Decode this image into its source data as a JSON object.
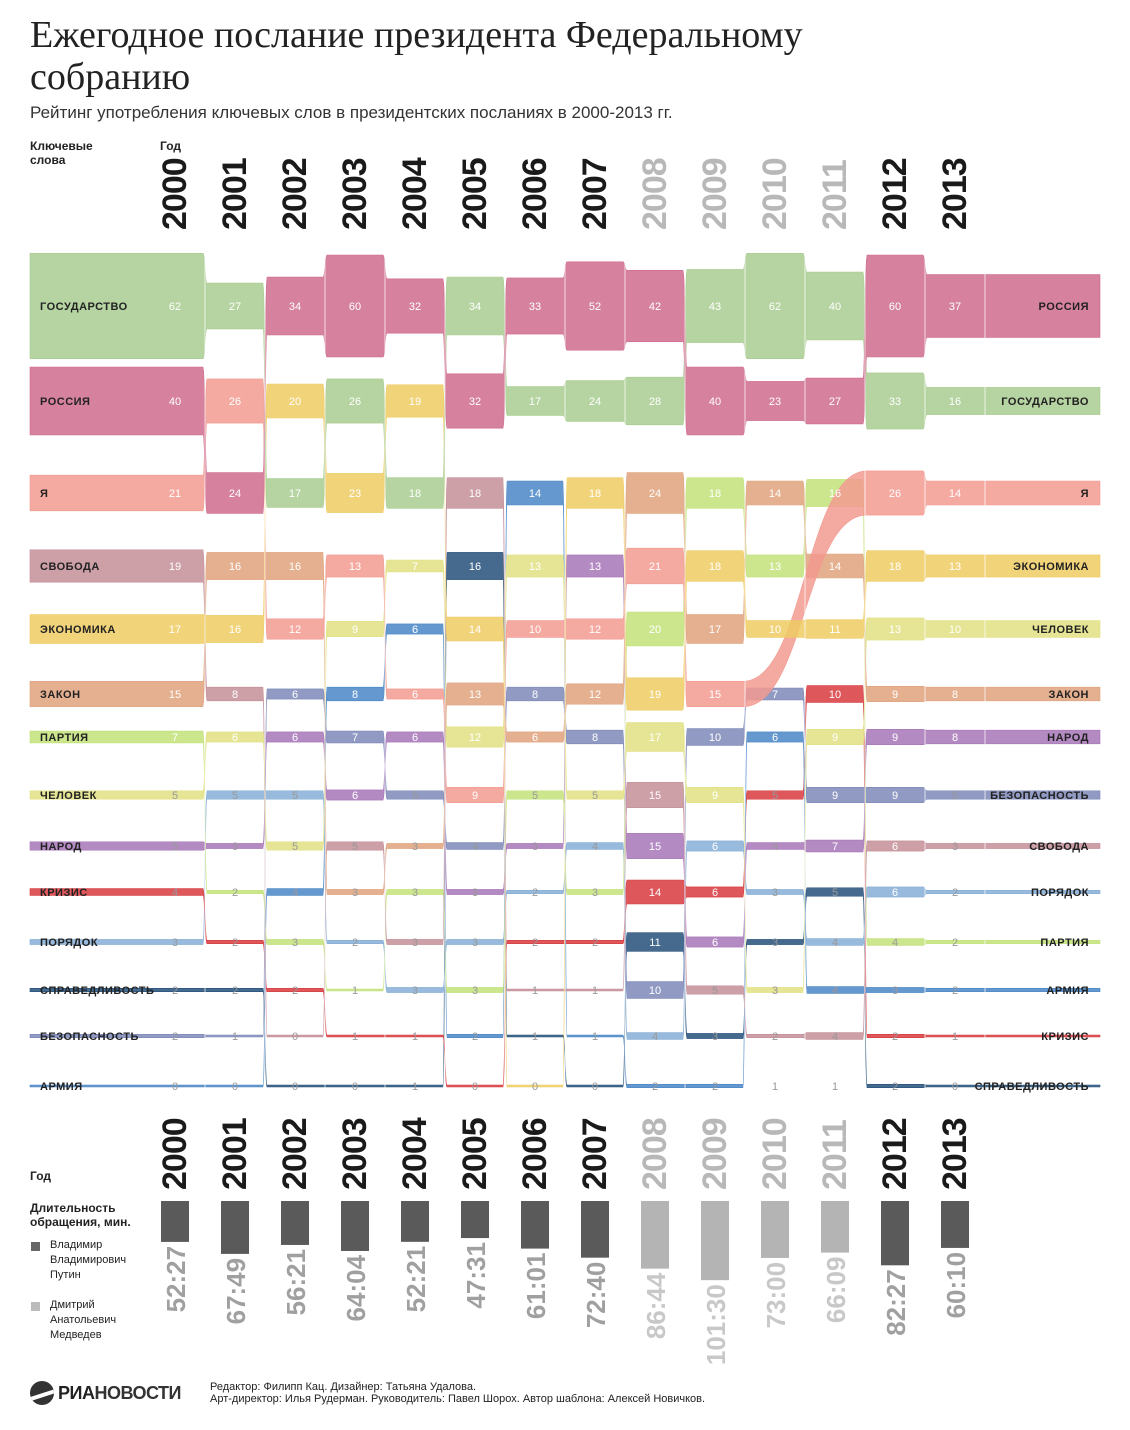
{
  "title": "Ежегодное послание президента Федеральному собранию",
  "subtitle": "Рейтинг употребления ключевых слов в президентских посланиях в 2000-2013 гг.",
  "headers": {
    "keywords": "Ключевые слова",
    "year": "Год",
    "year_bottom": "Год",
    "duration": "Длительность обращения, мин."
  },
  "legend": [
    {
      "label": "Владимир Владимирович Путин",
      "color": "#666666"
    },
    {
      "label": "Дмитрий Анатольевич Медведев",
      "color": "#bbbbbb"
    }
  ],
  "footer": {
    "line1": "Редактор: Филипп Кац. Дизайнер: Татьяна Удалова.",
    "line2": "Арт-директор: Илья Рудерман. Руководитель: Павел Шорох. Автор шаблона: Алексей Новичков.",
    "logo_a": "РИА",
    "logo_b": "НОВОСТИ"
  },
  "chart_data": {
    "type": "table",
    "years": [
      "2000",
      "2001",
      "2002",
      "2003",
      "2004",
      "2005",
      "2006",
      "2007",
      "2008",
      "2009",
      "2010",
      "2011",
      "2012",
      "2013"
    ],
    "president": [
      "Putin",
      "Putin",
      "Putin",
      "Putin",
      "Putin",
      "Putin",
      "Putin",
      "Putin",
      "Medvedev",
      "Medvedev",
      "Medvedev",
      "Medvedev",
      "Putin",
      "Putin"
    ],
    "durations": [
      "52:27",
      "67:49",
      "56:21",
      "64:04",
      "52:21",
      "47:31",
      "61:01",
      "72:40",
      "86:44",
      "101:30",
      "73:00",
      "66:09",
      "82:27",
      "60:10"
    ],
    "left_labels": [
      "ГОСУДАРСТВО",
      "РОССИЯ",
      "Я",
      "СВОБОДА",
      "ЭКОНОМИКА",
      "ЗАКОН",
      "ПАРТИЯ",
      "ЧЕЛОВЕК",
      "НАРОД",
      "КРИЗИС",
      "ПОРЯДОК",
      "СПРАВЕДЛИВОСТЬ",
      "БЕЗОПАСНОСТЬ",
      "АРМИЯ"
    ],
    "right_labels": [
      "РОССИЯ",
      "ГОСУДАРСТВО",
      "Я",
      "ЭКОНОМИКА",
      "ЧЕЛОВЕК",
      "ЗАКОН",
      "НАРОД",
      "БЕЗОПАСНОСТЬ",
      "СВОБОДА",
      "ПОРЯДОК",
      "ПАРТИЯ",
      "АРМИЯ",
      "КРИЗИС",
      "СПРАВЕДЛИВОСТЬ"
    ],
    "keyword_colors": {
      "ГОСУДАРСТВО": "#a8cc90",
      "РОССИЯ": "#cf6b8c",
      "Я": "#f29a90",
      "СВОБОДА": "#c48e98",
      "ЭКОНОМИКА": "#eecb63",
      "ЗАКОН": "#dfa27c",
      "ПАРТИЯ": "#c3e27a",
      "ЧЕЛОВЕК": "#e1e183",
      "НАРОД": "#a775b8",
      "КРИЗИС": "#d73a3e",
      "ПОРЯДОК": "#86aed6",
      "СПРАВЕДЛИВОСТЬ": "#24507a",
      "БЕЗОПАСНОСТЬ": "#7c88b8",
      "АРМИЯ": "#4a86c6"
    },
    "ranking": [
      {
        "year": "2000",
        "words": [
          "ГОСУДАРСТВО",
          "РОССИЯ",
          "Я",
          "СВОБОДА",
          "ЭКОНОМИКА",
          "ЗАКОН",
          "ПАРТИЯ",
          "ЧЕЛОВЕК",
          "НАРОД",
          "КРИЗИС",
          "ПОРЯДОК",
          "СПРАВЕДЛИВОСТЬ",
          "БЕЗОПАСНОСТЬ",
          "АРМИЯ"
        ],
        "counts": [
          62,
          40,
          21,
          19,
          17,
          15,
          7,
          5,
          5,
          4,
          3,
          2,
          2,
          0
        ]
      },
      {
        "year": "2001",
        "words": [
          "ГОСУДАРСТВО",
          "Я",
          "РОССИЯ",
          "ЗАКОН",
          "ЭКОНОМИКА",
          "СВОБОДА",
          "ЧЕЛОВЕК",
          "ПОРЯДОК",
          "НАРОД",
          "ПАРТИЯ",
          "КРИЗИС",
          "СПРАВЕДЛИВОСТЬ",
          "БЕЗОПАСНОСТЬ",
          "АРМИЯ"
        ],
        "counts": [
          27,
          26,
          24,
          16,
          16,
          8,
          6,
          5,
          3,
          2,
          2,
          2,
          1,
          0
        ]
      },
      {
        "year": "2002",
        "words": [
          "РОССИЯ",
          "ЭКОНОМИКА",
          "ГОСУДАРСТВО",
          "ЗАКОН",
          "Я",
          "БЕЗОПАСНОСТЬ",
          "НАРОД",
          "ПОРЯДОК",
          "ЧЕЛОВЕК",
          "АРМИЯ",
          "ПАРТИЯ",
          "КРИЗИС",
          "СВОБОДА",
          "СПРАВЕДЛИВОСТЬ"
        ],
        "counts": [
          34,
          20,
          17,
          16,
          12,
          6,
          6,
          5,
          5,
          4,
          3,
          2,
          0,
          0
        ]
      },
      {
        "year": "2003",
        "words": [
          "РОССИЯ",
          "ГОСУДАРСТВО",
          "ЭКОНОМИКА",
          "Я",
          "ЧЕЛОВЕК",
          "АРМИЯ",
          "БЕЗОПАСНОСТЬ",
          "НАРОД",
          "СВОБОДА",
          "ЗАКОН",
          "ПОРЯДОК",
          "ПАРТИЯ",
          "КРИЗИС",
          "СПРАВЕДЛИВОСТЬ"
        ],
        "counts": [
          60,
          26,
          23,
          13,
          9,
          8,
          7,
          6,
          5,
          3,
          2,
          1,
          1,
          0
        ]
      },
      {
        "year": "2004",
        "words": [
          "РОССИЯ",
          "ЭКОНОМИКА",
          "ГОСУДАРСТВО",
          "ЧЕЛОВЕК",
          "АРМИЯ",
          "Я",
          "НАРОД",
          "БЕЗОПАСНОСТЬ",
          "ЗАКОН",
          "ПАРТИЯ",
          "СВОБОДА",
          "ПОРЯДОК",
          "КРИЗИС",
          "СПРАВЕДЛИВОСТЬ"
        ],
        "counts": [
          32,
          19,
          18,
          7,
          6,
          6,
          6,
          5,
          3,
          3,
          3,
          3,
          1,
          1
        ]
      },
      {
        "year": "2005",
        "words": [
          "ГОСУДАРСТВО",
          "РОССИЯ",
          "СВОБОДА",
          "СПРАВЕДЛИВОСТЬ",
          "ЭКОНОМИКА",
          "ЗАКОН",
          "ЧЕЛОВЕК",
          "Я",
          "БЕЗОПАСНОСТЬ",
          "НАРОД",
          "ПОРЯДОК",
          "ПАРТИЯ",
          "АРМИЯ",
          "КРИЗИС"
        ],
        "counts": [
          34,
          32,
          18,
          16,
          14,
          13,
          12,
          9,
          4,
          3,
          3,
          3,
          2,
          0
        ]
      },
      {
        "year": "2006",
        "words": [
          "РОССИЯ",
          "ГОСУДАРСТВО",
          "АРМИЯ",
          "ЧЕЛОВЕК",
          "Я",
          "БЕЗОПАСНОСТЬ",
          "ЗАКОН",
          "ПАРТИЯ",
          "НАРОД",
          "ПОРЯДОК",
          "КРИЗИС",
          "СВОБОДА",
          "СПРАВЕДЛИВОСТЬ",
          "ЭКОНОМИКА"
        ],
        "counts": [
          33,
          17,
          14,
          13,
          10,
          8,
          6,
          5,
          3,
          2,
          2,
          1,
          1,
          0
        ]
      },
      {
        "year": "2007",
        "words": [
          "РОССИЯ",
          "ГОСУДАРСТВО",
          "ЭКОНОМИКА",
          "НАРОД",
          "Я",
          "ЗАКОН",
          "БЕЗОПАСНОСТЬ",
          "ЧЕЛОВЕК",
          "ПОРЯДОК",
          "ПАРТИЯ",
          "КРИЗИС",
          "СВОБОДА",
          "АРМИЯ",
          "СПРАВЕДЛИВОСТЬ"
        ],
        "counts": [
          52,
          24,
          18,
          13,
          12,
          12,
          8,
          5,
          4,
          3,
          2,
          1,
          1,
          0
        ]
      },
      {
        "year": "2008",
        "words": [
          "РОССИЯ",
          "ГОСУДАРСТВО",
          "ЗАКОН",
          "Я",
          "ПАРТИЯ",
          "ЭКОНОМИКА",
          "ЧЕЛОВЕК",
          "СВОБОДА",
          "НАРОД",
          "КРИЗИС",
          "СПРАВЕДЛИВОСТЬ",
          "БЕЗОПАСНОСТЬ",
          "ПОРЯДОК",
          "АРМИЯ"
        ],
        "counts": [
          42,
          28,
          24,
          21,
          20,
          19,
          17,
          15,
          15,
          14,
          11,
          10,
          4,
          2
        ]
      },
      {
        "year": "2009",
        "words": [
          "ГОСУДАРСТВО",
          "РОССИЯ",
          "ПАРТИЯ",
          "ЭКОНОМИКА",
          "ЗАКОН",
          "Я",
          "БЕЗОПАСНОСТЬ",
          "ЧЕЛОВЕК",
          "ПОРЯДОК",
          "КРИЗИС",
          "НАРОД",
          "СВОБОДА",
          "СПРАВЕДЛИВОСТЬ",
          "АРМИЯ"
        ],
        "counts": [
          43,
          40,
          18,
          18,
          17,
          15,
          10,
          9,
          6,
          6,
          6,
          5,
          3,
          2
        ]
      },
      {
        "year": "2010",
        "words": [
          "ГОСУДАРСТВО",
          "РОССИЯ",
          "ЗАКОН",
          "ПАРТИЯ",
          "ЭКОНОМИКА",
          "БЕЗОПАСНОСТЬ",
          "АРМИЯ",
          "КРИЗИС",
          "НАРОД",
          "ПОРЯДОК",
          "СПРАВЕДЛИВОСТЬ",
          "ЧЕЛОВЕК",
          "СВОБОДА",
          "АРМИЯ"
        ],
        "counts": [
          62,
          23,
          14,
          13,
          10,
          7,
          6,
          5,
          4,
          3,
          3,
          3,
          2,
          1
        ]
      },
      {
        "year": "2011",
        "words": [
          "ГОСУДАРСТВО",
          "РОССИЯ",
          "ПАРТИЯ",
          "ЗАКОН",
          "ЭКОНОМИКА",
          "КРИЗИС",
          "ЧЕЛОВЕК",
          "БЕЗОПАСНОСТЬ",
          "НАРОД",
          "СПРАВЕДЛИВОСТЬ",
          "ПОРЯДОК",
          "АРМИЯ",
          "СВОБОДА",
          "КРИЗИС"
        ],
        "counts": [
          40,
          27,
          16,
          14,
          11,
          10,
          9,
          9,
          7,
          5,
          4,
          4,
          4,
          1
        ]
      },
      {
        "year": "2012",
        "words": [
          "РОССИЯ",
          "ГОСУДАРСТВО",
          "Я",
          "ЭКОНОМИКА",
          "ЧЕЛОВЕК",
          "ЗАКОН",
          "НАРОД",
          "БЕЗОПАСНОСТЬ",
          "СВОБОДА",
          "ПОРЯДОК",
          "ПАРТИЯ",
          "АРМИЯ",
          "КРИЗИС",
          "СПРАВЕДЛИВОСТЬ"
        ],
        "counts": [
          60,
          33,
          26,
          18,
          13,
          9,
          9,
          9,
          6,
          6,
          4,
          3,
          2,
          2
        ]
      },
      {
        "year": "2013",
        "words": [
          "РОССИЯ",
          "ГОСУДАРСТВО",
          "Я",
          "ЭКОНОМИКА",
          "ЧЕЛОВЕК",
          "ЗАКОН",
          "НАРОД",
          "БЕЗОПАСНОСТЬ",
          "СВОБОДА",
          "ПОРЯДОК",
          "ПАРТИЯ",
          "АРМИЯ",
          "КРИЗИС",
          "СПРАВЕДЛИВОСТЬ"
        ],
        "counts": [
          37,
          16,
          14,
          13,
          10,
          8,
          8,
          5,
          3,
          2,
          2,
          2,
          1,
          0
        ]
      }
    ]
  }
}
